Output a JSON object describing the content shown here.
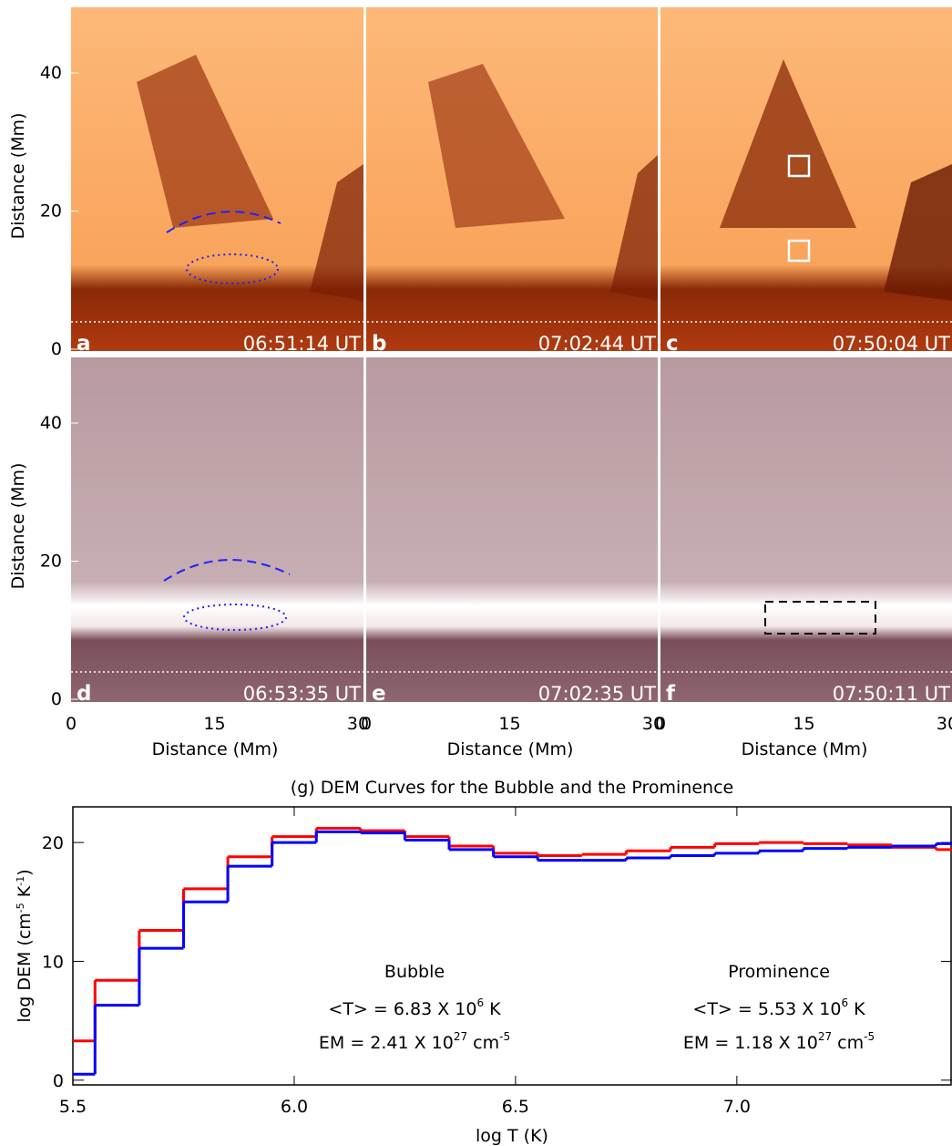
{
  "images": {
    "ylabel": "Distance (Mm)",
    "xlabel": "Distance (Mm)",
    "xticks": [
      0,
      15,
      30
    ],
    "yticks": [
      0,
      20,
      40
    ],
    "panels": [
      {
        "letter": "a",
        "time": "06:51:14 UT"
      },
      {
        "letter": "b",
        "time": "07:02:44 UT"
      },
      {
        "letter": "c",
        "time": "07:50:04 UT"
      },
      {
        "letter": "d",
        "time": "06:53:35 UT"
      },
      {
        "letter": "e",
        "time": "07:02:35 UT"
      },
      {
        "letter": "f",
        "time": "07:50:11 UT"
      }
    ]
  },
  "chart_data": {
    "type": "step",
    "title": "(g) DEM Curves for the Bubble and the Prominence",
    "xlabel": "log T (K)",
    "ylabel": {
      "text": "log DEM (cm",
      "exp1": "-5",
      "mid": " K",
      "exp2": "-1",
      "end": ")"
    },
    "x": [
      5.5,
      5.6,
      5.7,
      5.8,
      5.9,
      6.0,
      6.1,
      6.2,
      6.3,
      6.4,
      6.5,
      6.6,
      6.7,
      6.8,
      6.9,
      7.0,
      7.1,
      7.2,
      7.3,
      7.4,
      7.5
    ],
    "series": [
      {
        "name": "Bubble",
        "color": "#ff0000",
        "values": [
          3.3,
          8.4,
          12.6,
          16.1,
          18.8,
          20.5,
          21.2,
          21.0,
          20.5,
          19.7,
          19.1,
          18.9,
          19.0,
          19.3,
          19.6,
          19.9,
          20.0,
          19.9,
          19.8,
          19.6,
          19.4
        ]
      },
      {
        "name": "Prominence",
        "color": "#0000ff",
        "values": [
          0.5,
          6.3,
          11.1,
          15.0,
          18.0,
          20.0,
          20.9,
          20.8,
          20.2,
          19.4,
          18.8,
          18.5,
          18.5,
          18.7,
          18.9,
          19.1,
          19.3,
          19.5,
          19.6,
          19.7,
          19.9
        ]
      }
    ],
    "annotations": [
      {
        "temp": "<T> = 6.83 X 10",
        "temp_exp": "6",
        "temp_unit": " K",
        "em": "EM = 2.41 X 10",
        "em_exp": "27",
        "em_unit": " cm",
        "em_unit_exp": "-5"
      },
      {
        "temp": "<T> = 5.53 X 10",
        "temp_exp": "6",
        "temp_unit": " K",
        "em": "EM = 1.18 X 10",
        "em_exp": "27",
        "em_unit": " cm",
        "em_unit_exp": "-5"
      }
    ],
    "xlim": [
      5.5,
      7.486
    ],
    "ylim": [
      -0.4,
      23
    ],
    "xticks": [
      5.5,
      {
        "value": 6,
        "label": "6.0"
      },
      6.5,
      {
        "value": 7,
        "label": "7.0"
      }
    ],
    "yticks": [
      0,
      10,
      20
    ]
  }
}
